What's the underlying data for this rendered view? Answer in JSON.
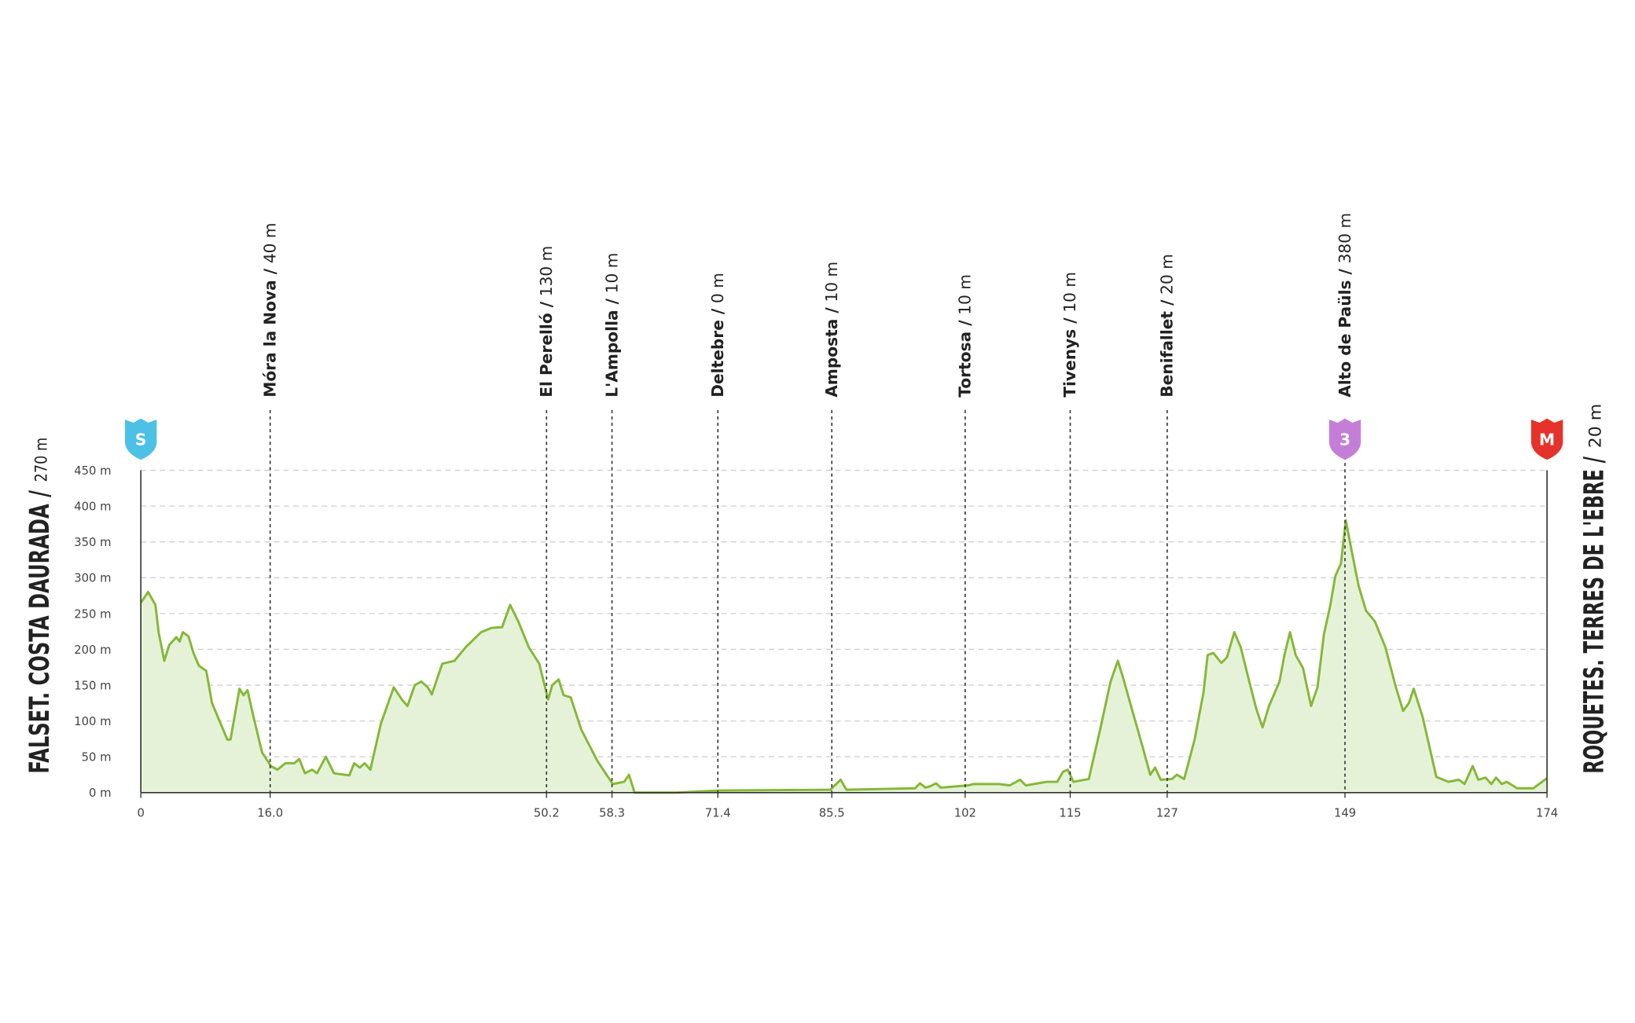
{
  "chart_data": {
    "type": "area",
    "start": {
      "name": "FALSET. COSTA DAURADA /",
      "elevation": "270 m",
      "badge": "S",
      "color": "#4dc0e6"
    },
    "finish": {
      "name": "ROQUETES. TERRES DE L'EBRE /",
      "elevation": "20 m",
      "badge": "M",
      "color": "#e5322a"
    },
    "climb": {
      "badge": "3",
      "color": "#c57ed8"
    },
    "waypoints": [
      {
        "name": "Móra la Nova /",
        "elevation": "40 m"
      },
      {
        "name": "El Perelló /",
        "elevation": "130 m"
      },
      {
        "name": "L'Ampolla /",
        "elevation": "10 m"
      },
      {
        "name": "Deltebre /",
        "elevation": "0 m"
      },
      {
        "name": "Amposta /",
        "elevation": "10 m"
      },
      {
        "name": "Tortosa /",
        "elevation": "10 m"
      },
      {
        "name": "Tivenys /",
        "elevation": "10 m"
      },
      {
        "name": "Benifallet /",
        "elevation": "20 m"
      },
      {
        "name": "Alto de Paüls /",
        "elevation": "380 m"
      }
    ],
    "xlim": [
      0,
      174
    ],
    "ylim": [
      0,
      450
    ],
    "xticks": [
      0,
      {
        "value": 16,
        "label": "16.0"
      },
      50.2,
      58.3,
      71.4,
      85.5,
      102,
      115,
      127,
      149,
      174
    ],
    "yticks": [
      {
        "value": 0,
        "label": "0 m"
      },
      {
        "value": 50,
        "label": "50 m"
      },
      {
        "value": 100,
        "label": "100 m"
      },
      {
        "value": 150,
        "label": "150 m"
      },
      {
        "value": 200,
        "label": "200 m"
      },
      {
        "value": 250,
        "label": "250 m"
      },
      {
        "value": 300,
        "label": "300 m"
      },
      {
        "value": 350,
        "label": "350 m"
      },
      {
        "value": 400,
        "label": "400 m"
      },
      {
        "value": 450,
        "label": "450 m"
      }
    ],
    "grid": true,
    "series": [
      {
        "color": "#84b838",
        "fill": "#e6f2d8",
        "x": [
          0,
          0.9,
          1.8,
          2.2,
          2.9,
          3.5,
          4.4,
          4.8,
          5.2,
          5.9,
          6.5,
          7.2,
          8.1,
          8.8,
          10.7,
          11.1,
          12.2,
          12.7,
          13.2,
          14.0,
          15.0,
          16.1,
          16.9,
          17.9,
          19.0,
          19.6,
          20.3,
          21.2,
          21.8,
          22.9,
          23.9,
          25.8,
          26.4,
          27.1,
          27.7,
          28.4,
          29.7,
          31.3,
          32.3,
          33.0,
          33.9,
          34.7,
          35.5,
          36.0,
          37.3,
          38.8,
          40.2,
          42.1,
          43.4,
          44.7,
          45.7,
          46.7,
          48.0,
          49.3,
          50.4,
          50.9,
          51.7,
          52.3,
          53.2,
          54.5,
          56.5,
          58.4,
          59.8,
          60.4,
          61.1,
          66.3,
          71.6,
          85.3,
          86.6,
          87.3,
          95.8,
          96.4,
          97.1,
          97.7,
          98.4,
          99.0,
          102.3,
          103.0,
          106.2,
          107.5,
          108.8,
          109.5,
          112.1,
          113.4,
          114.1,
          114.7,
          115.4,
          117.3,
          118.7,
          120.0,
          120.9,
          121.5,
          122.6,
          123.9,
          124.9,
          125.5,
          126.2,
          127.6,
          128.2,
          129.1,
          130.4,
          131.5,
          132.0,
          132.7,
          133.7,
          134.4,
          135.3,
          136.1,
          137.0,
          138.0,
          138.8,
          139.6,
          140.9,
          141.5,
          142.2,
          142.9,
          143.8,
          144.8,
          145.6,
          146.4,
          147.2,
          147.8,
          148.5,
          149.1,
          149.8,
          150.7,
          151.6,
          152.7,
          154.0,
          155.3,
          156.2,
          156.9,
          157.5,
          158.6,
          160.3,
          161.8,
          163.1,
          163.8,
          164.8,
          165.5,
          166.4,
          167.1,
          167.7,
          168.4,
          169.0,
          170.3,
          172.3,
          174
        ],
        "values": [
          265,
          280,
          262,
          224,
          184,
          206,
          217,
          211,
          224,
          218,
          195,
          177,
          170,
          125,
          74,
          74,
          145,
          136,
          143,
          103,
          56,
          37,
          32,
          41,
          41,
          47,
          27,
          32,
          27,
          50,
          27,
          24,
          41,
          35,
          41,
          32,
          96,
          147,
          130,
          121,
          150,
          155,
          147,
          137,
          180,
          184,
          203,
          224,
          230,
          231,
          262,
          239,
          203,
          180,
          130,
          150,
          158,
          136,
          133,
          88,
          44,
          12,
          15,
          25,
          0,
          0,
          3,
          4,
          18,
          4,
          6,
          13,
          7,
          9,
          13,
          7,
          10,
          12,
          12,
          10,
          18,
          10,
          15,
          15,
          29,
          32,
          15,
          19,
          88,
          155,
          184,
          162,
          118,
          66,
          25,
          35,
          18,
          19,
          25,
          19,
          74,
          140,
          192,
          195,
          181,
          189,
          224,
          203,
          162,
          118,
          91,
          121,
          155,
          192,
          224,
          192,
          174,
          121,
          147,
          221,
          262,
          302,
          320,
          380,
          339,
          288,
          254,
          239,
          203,
          147,
          114,
          125,
          145,
          106,
          22,
          15,
          18,
          12,
          37,
          18,
          21,
          12,
          21,
          12,
          15,
          6,
          6,
          20
        ]
      }
    ]
  }
}
